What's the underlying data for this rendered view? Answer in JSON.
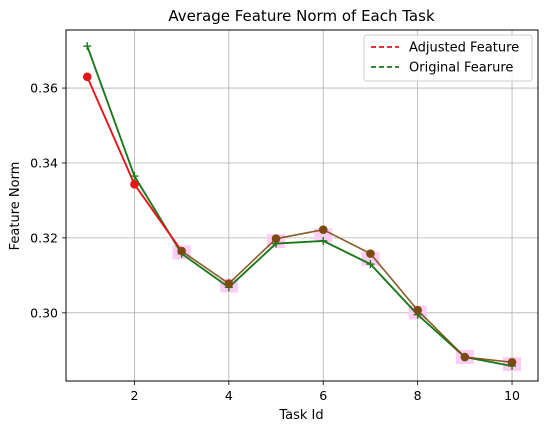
{
  "chart_data": {
    "type": "line",
    "title": "Average Feature Norm of Each Task",
    "xlabel": "Task Id",
    "ylabel": "Feature Norm",
    "x": [
      1,
      2,
      3,
      4,
      5,
      6,
      7,
      8,
      9,
      10
    ],
    "xlim": [
      0.55,
      10.55
    ],
    "ylim": [
      0.2818,
      0.3755
    ],
    "xticks": [
      2,
      4,
      6,
      8,
      10
    ],
    "xtick_labels": [
      "2",
      "4",
      "6",
      "8",
      "10"
    ],
    "yticks": [
      0.3,
      0.32,
      0.34,
      0.36
    ],
    "ytick_labels": [
      "0.30",
      "0.32",
      "0.34",
      "0.36"
    ],
    "grid": true,
    "legend_position": "top-right",
    "series": [
      {
        "name": "Adjusted Feature",
        "color": "#e8141c",
        "marker": "circle",
        "values": [
          0.363,
          0.3343,
          0.3165,
          0.3078,
          0.3198,
          0.3222,
          0.3158,
          0.3007,
          0.2882,
          0.2868
        ]
      },
      {
        "name": "Original Fearure",
        "color": "#1a7a1a",
        "marker": "plus",
        "values": [
          0.3712,
          0.3365,
          0.3158,
          0.3068,
          0.3185,
          0.3192,
          0.313,
          0.2995,
          0.2882,
          0.2858
        ]
      }
    ],
    "overlap_color": "#7a4a10",
    "highlight_color": "#ffccf5"
  }
}
